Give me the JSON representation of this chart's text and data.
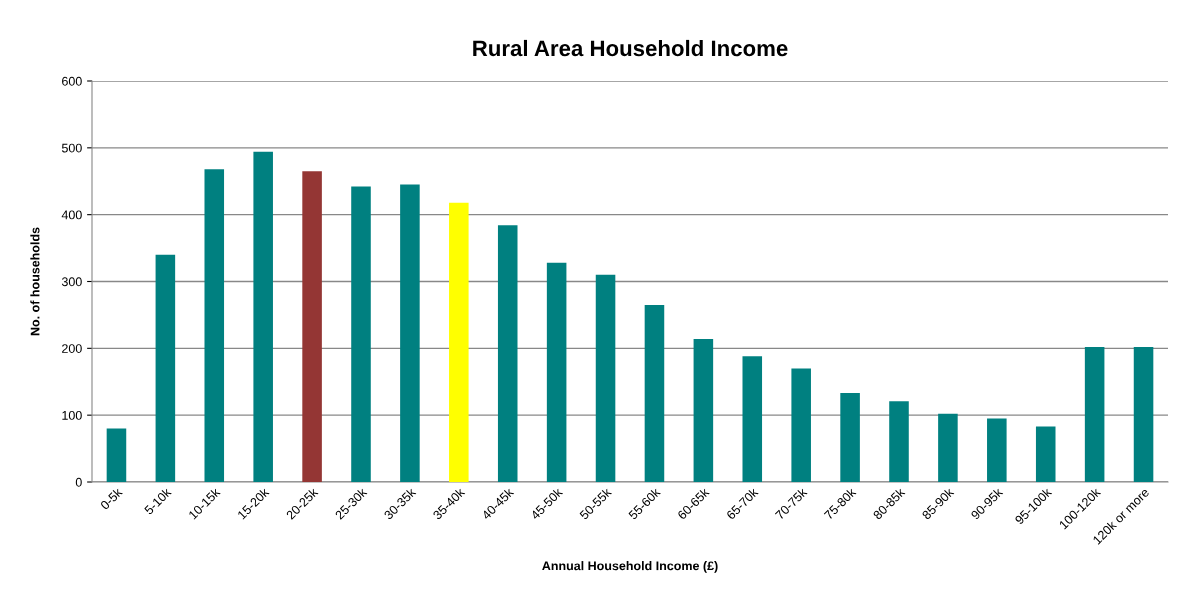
{
  "chart_data": {
    "type": "bar",
    "title": "Rural Area Household Income",
    "xlabel": "Annual Household Income (£)",
    "ylabel": "No. of households",
    "categories": [
      "0-5k",
      "5-10k",
      "10-15k",
      "15-20k",
      "20-25k",
      "25-30k",
      "30-35k",
      "35-40k",
      "40-45k",
      "45-50k",
      "50-55k",
      "55-60k",
      "60-65k",
      "65-70k",
      "70-75k",
      "75-80k",
      "80-85k",
      "85-90k",
      "90-95k",
      "95-100k",
      "100-120k",
      "120k or more"
    ],
    "values": [
      80,
      340,
      468,
      494,
      465,
      442,
      445,
      418,
      384,
      328,
      310,
      265,
      214,
      188,
      170,
      133,
      121,
      102,
      95,
      83,
      202,
      202
    ],
    "colors": [
      "#008080",
      "#008080",
      "#008080",
      "#008080",
      "#943634",
      "#008080",
      "#008080",
      "#ffff00",
      "#008080",
      "#008080",
      "#008080",
      "#008080",
      "#008080",
      "#008080",
      "#008080",
      "#008080",
      "#008080",
      "#008080",
      "#008080",
      "#008080",
      "#008080",
      "#008080"
    ],
    "ylim": [
      0,
      600
    ],
    "yticks": [
      0,
      100,
      200,
      300,
      400,
      500,
      600
    ],
    "grid": "y",
    "legend": false
  }
}
